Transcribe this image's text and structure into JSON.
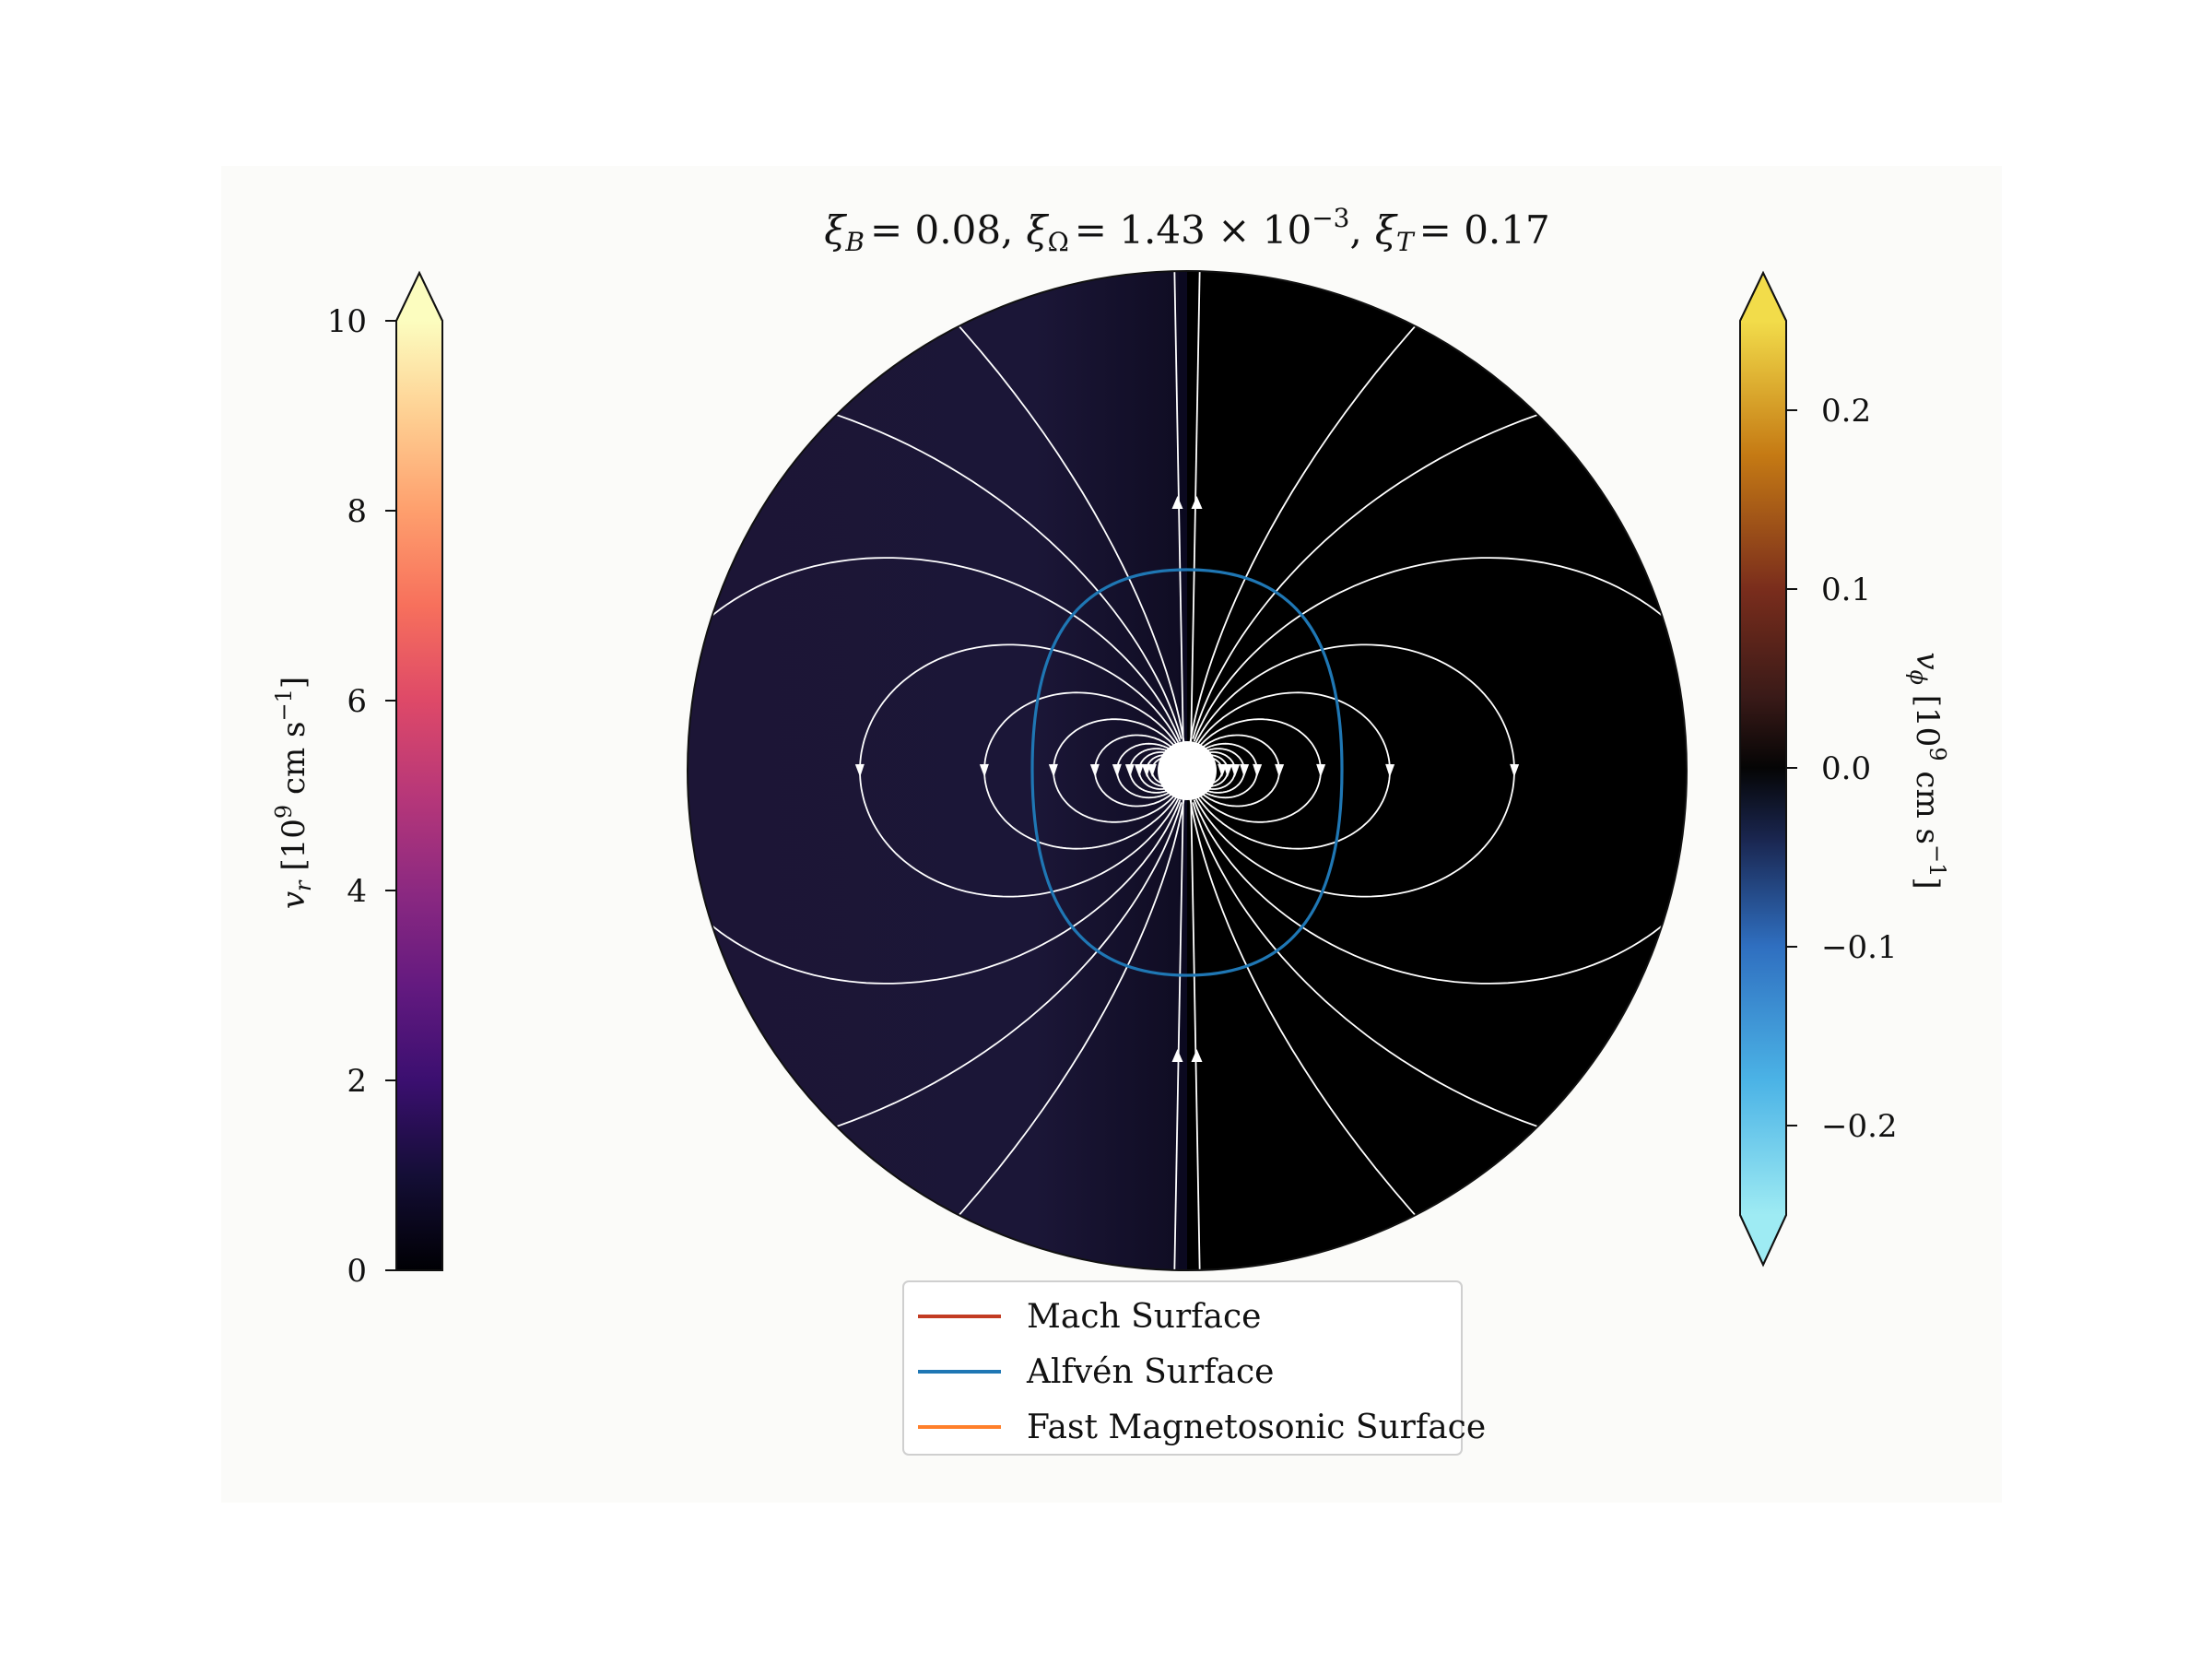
{
  "chart_data": {
    "type": "heatmap",
    "title_parts": {
      "xiB_label": "ξ",
      "xiB_sub": "B",
      "xiB_value": "= 0.08,",
      "xiO_label": "ξ",
      "xiO_sub": "Ω",
      "xiO_value": "= 1.43 × 10",
      "xiO_exp": "−3",
      "xiO_comma": ",",
      "xiT_label": "ξ",
      "xiT_sub": "T",
      "xiT_value": "= 0.17"
    },
    "left_colorbar": {
      "quantity": "v",
      "quantity_sub": "r",
      "unit_open": " [10",
      "unit_exp": "9",
      "unit_mid": " cm s",
      "unit_exp2": "−1",
      "unit_close": "]",
      "colormap": "magma",
      "range": [
        0,
        10
      ],
      "extend": "max",
      "ticks": [
        0,
        2,
        4,
        6,
        8,
        10
      ],
      "tick_labels": [
        "0",
        "2",
        "4",
        "6",
        "8",
        "10"
      ]
    },
    "right_colorbar": {
      "quantity": "v",
      "quantity_sub": "ϕ",
      "unit_open": " [10",
      "unit_exp": "9",
      "unit_mid": " cm s",
      "unit_exp2": "−1",
      "unit_close": "]",
      "colormap": "berlin-like diverging",
      "range": [
        -0.25,
        0.25
      ],
      "extend": "both",
      "ticks": [
        0.2,
        0.1,
        0.0,
        -0.1,
        -0.2
      ],
      "tick_labels": [
        "0.2",
        "0.1",
        "0.0",
        "−0.1",
        "−0.2"
      ]
    },
    "left_half_fill": "#1c1538",
    "right_half_fill": "#000000",
    "alfven_surface": {
      "color": "#1f77b4",
      "shape": "rounded rectangle around star"
    },
    "field_lines": "dipole, white",
    "legend": {
      "position": "bottom-center",
      "items": [
        {
          "label": "Mach Surface",
          "color": "#c23b22"
        },
        {
          "label": "Alfvén Surface",
          "color": "#1f77b4"
        },
        {
          "label": "Fast Magnetosonic Surface",
          "color": "#ff7f2a"
        }
      ]
    }
  }
}
